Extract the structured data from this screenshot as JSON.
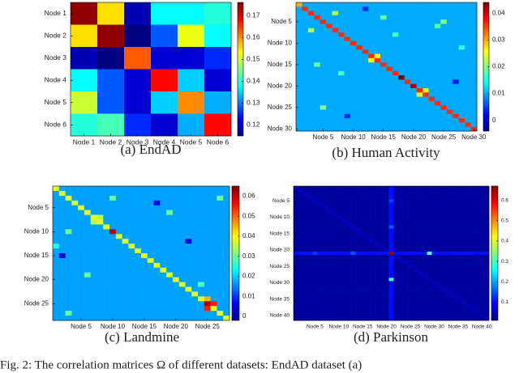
{
  "figure_caption": "Fig. 2:   The correlation matrices Ω of different datasets: EndAD dataset (a)",
  "chart_data": [
    {
      "type": "heatmap",
      "caption": "(a)  EndAD",
      "colormap": "jet",
      "xlim": [
        0.5,
        6.5
      ],
      "ylim": [
        0.5,
        6.5
      ],
      "xticks": [
        {
          "value": 1,
          "label": "Node 1"
        },
        {
          "value": 2,
          "label": "Node 2"
        },
        {
          "value": 3,
          "label": "Node 3"
        },
        {
          "value": 4,
          "label": "Node 4"
        },
        {
          "value": 5,
          "label": "Node 5"
        },
        {
          "value": 6,
          "label": "Node 6"
        }
      ],
      "yticks": [
        {
          "value": 1,
          "label": "Node 1"
        },
        {
          "value": 2,
          "label": "Node 2"
        },
        {
          "value": 3,
          "label": "Node 3"
        },
        {
          "value": 4,
          "label": "Node 4"
        },
        {
          "value": 5,
          "label": "Node 5"
        },
        {
          "value": 6,
          "label": "Node 6"
        }
      ],
      "clim": [
        0.115,
        0.176
      ],
      "cticks": [
        0.12,
        0.13,
        0.14,
        0.15,
        0.16,
        0.17
      ],
      "values": [
        [
          0.175,
          0.155,
          0.118,
          0.138,
          0.138,
          0.14
        ],
        [
          0.155,
          0.175,
          0.115,
          0.128,
          0.152,
          0.138
        ],
        [
          0.118,
          0.115,
          0.163,
          0.12,
          0.12,
          0.125
        ],
        [
          0.138,
          0.128,
          0.12,
          0.168,
          0.135,
          0.12
        ],
        [
          0.15,
          0.128,
          0.12,
          0.135,
          0.16,
          0.133
        ],
        [
          0.14,
          0.142,
          0.125,
          0.12,
          0.133,
          0.168
        ]
      ]
    },
    {
      "type": "heatmap",
      "caption": "(b)  Human  Activity",
      "colormap": "jet",
      "xlim": [
        0.5,
        30.5
      ],
      "ylim": [
        0.5,
        30.5
      ],
      "xticks": [
        {
          "value": 5,
          "label": "Node 5"
        },
        {
          "value": 10,
          "label": "Node 10"
        },
        {
          "value": 15,
          "label": "Node 15"
        },
        {
          "value": 20,
          "label": "Node 20"
        },
        {
          "value": 25,
          "label": "Node 25"
        },
        {
          "value": 30,
          "label": "Node 30"
        }
      ],
      "yticks": [
        {
          "value": 5,
          "label": "Node 5"
        },
        {
          "value": 10,
          "label": "Node 10"
        },
        {
          "value": 15,
          "label": "Node 15"
        },
        {
          "value": 20,
          "label": "Node 20"
        },
        {
          "value": 25,
          "label": "Node 25"
        },
        {
          "value": 30,
          "label": "Node 30"
        }
      ],
      "clim": [
        -0.004,
        0.044
      ],
      "cticks": [
        0,
        0.01,
        0.02,
        0.03,
        0.04
      ],
      "base": 0.01,
      "diagonal": 0.036,
      "cells": [
        [
          18,
          18,
          0.044
        ],
        [
          20,
          20,
          0.042
        ],
        [
          1,
          1,
          0.03
        ],
        [
          3,
          7,
          0.022
        ],
        [
          7,
          3,
          0.022
        ],
        [
          13,
          14,
          0.026
        ],
        [
          14,
          13,
          0.026
        ],
        [
          22,
          21,
          0.024
        ],
        [
          21,
          22,
          0.024
        ],
        [
          25,
          5,
          0.02
        ],
        [
          5,
          25,
          0.02
        ],
        [
          6,
          24,
          0.018
        ],
        [
          8,
          17,
          0.017
        ],
        [
          17,
          8,
          0.017
        ],
        [
          11,
          28,
          0.016
        ],
        [
          2,
          12,
          0.004
        ],
        [
          19,
          27,
          0.003
        ],
        [
          27,
          9,
          0.004
        ],
        [
          15,
          4,
          0.019
        ],
        [
          4,
          15,
          0.019
        ]
      ]
    },
    {
      "type": "heatmap",
      "caption": "(c)  Landmine",
      "colormap": "jet",
      "xlim": [
        0.5,
        28.5
      ],
      "ylim": [
        0.5,
        28.5
      ],
      "xticks": [
        {
          "value": 5,
          "label": "Node 5"
        },
        {
          "value": 10,
          "label": "Node 10"
        },
        {
          "value": 15,
          "label": "Node 15"
        },
        {
          "value": 20,
          "label": "Node 20"
        },
        {
          "value": 25,
          "label": "Node 25"
        }
      ],
      "yticks": [
        {
          "value": 5,
          "label": "Node 5"
        },
        {
          "value": 10,
          "label": "Node 10"
        },
        {
          "value": 15,
          "label": "Node 15"
        },
        {
          "value": 20,
          "label": "Node 20"
        },
        {
          "value": 25,
          "label": "Node 25"
        }
      ],
      "clim": [
        -0.002,
        0.065
      ],
      "cticks": [
        0,
        0.01,
        0.02,
        0.03,
        0.04,
        0.05,
        0.06
      ],
      "base": 0.017,
      "diagonal": 0.038,
      "cells": [
        [
          10,
          10,
          0.06
        ],
        [
          25,
          25,
          0.062
        ],
        [
          25,
          26,
          0.055
        ],
        [
          26,
          25,
          0.055
        ],
        [
          24,
          25,
          0.045
        ],
        [
          7,
          8,
          0.035
        ],
        [
          8,
          7,
          0.035
        ],
        [
          3,
          10,
          0.03
        ],
        [
          10,
          3,
          0.03
        ],
        [
          4,
          17,
          0.005
        ],
        [
          12,
          22,
          0.004
        ],
        [
          19,
          6,
          0.03
        ],
        [
          6,
          19,
          0.03
        ],
        [
          27,
          3,
          0.03
        ],
        [
          3,
          27,
          0.03
        ],
        [
          15,
          2,
          0.004
        ],
        [
          21,
          24,
          0.028
        ],
        [
          13,
          1,
          0.025
        ]
      ]
    },
    {
      "type": "heatmap",
      "caption": "(d)  Parkinson",
      "colormap": "jet",
      "xlim": [
        0.5,
        41.5
      ],
      "ylim": [
        0.5,
        41.5
      ],
      "xticks": [
        {
          "value": 5,
          "label": "Node 5"
        },
        {
          "value": 10,
          "label": "Node 10"
        },
        {
          "value": 15,
          "label": "Node 15"
        },
        {
          "value": 20,
          "label": "Node 20"
        },
        {
          "value": 25,
          "label": "Node 25"
        },
        {
          "value": 30,
          "label": "Node 30"
        },
        {
          "value": 35,
          "label": "Node 35"
        },
        {
          "value": 40,
          "label": "Node 40"
        }
      ],
      "yticks": [
        {
          "value": 5,
          "label": "Node 5"
        },
        {
          "value": 10,
          "label": "Node 10"
        },
        {
          "value": 15,
          "label": "Node 15"
        },
        {
          "value": 20,
          "label": "Node 20"
        },
        {
          "value": 25,
          "label": "Node 25"
        },
        {
          "value": 30,
          "label": "Node 30"
        },
        {
          "value": 35,
          "label": "Node 35"
        },
        {
          "value": 40,
          "label": "Node 40"
        }
      ],
      "clim": [
        0.01,
        0.67
      ],
      "cticks": [
        0.1,
        0.2,
        0.3,
        0.4,
        0.5,
        0.6
      ],
      "base": 0.03,
      "diagonal": 0.05,
      "bands": [
        {
          "index": 21,
          "value": 0.1
        }
      ],
      "cells": [
        [
          21,
          21,
          0.66
        ],
        [
          21,
          29,
          0.3
        ],
        [
          29,
          21,
          0.3
        ],
        [
          21,
          13,
          0.15
        ],
        [
          13,
          21,
          0.15
        ],
        [
          21,
          5,
          0.13
        ],
        [
          5,
          21,
          0.13
        ]
      ]
    }
  ]
}
